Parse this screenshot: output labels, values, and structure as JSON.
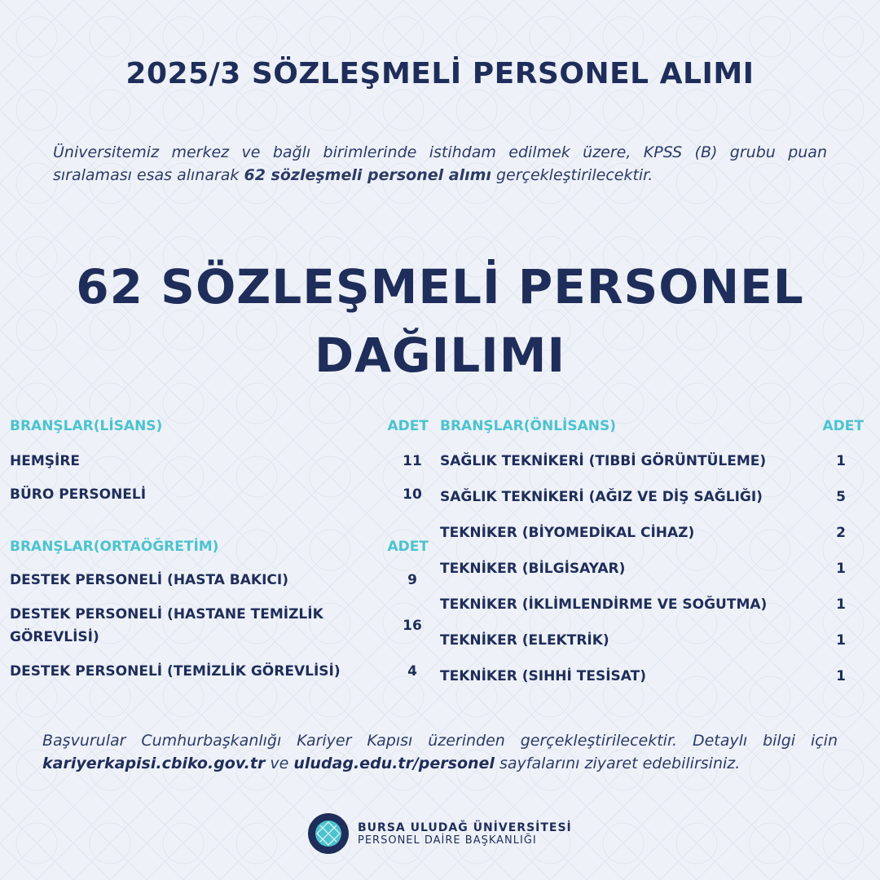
{
  "title": "2025/3 SÖZLEŞMELİ PERSONEL ALIMI",
  "intro": {
    "before": "Üniversitemiz merkez ve bağlı birimlerinde istihdam edilmek üzere, KPSS (B) grubu puan sıralaması esas alınarak ",
    "bold": "62 sözleşmeli personel alımı",
    "after": " gerçekleştirilecektir."
  },
  "big_title": {
    "line1": "62 SÖZLEŞMELİ PERSONEL",
    "line2": "DAĞILIMI"
  },
  "lisans": {
    "header": "BRANŞLAR(LİSANS)",
    "count_header": "ADET",
    "rows": [
      {
        "name": "HEMŞİRE",
        "count": "11"
      },
      {
        "name": "BÜRO PERSONELİ",
        "count": "10"
      }
    ]
  },
  "ortaogretim": {
    "header": "BRANŞLAR(ORTAÖĞRETİM)",
    "count_header": "ADET",
    "rows": [
      {
        "name": "DESTEK PERSONELİ (HASTA BAKICI)",
        "count": "9"
      },
      {
        "name": "DESTEK PERSONELİ (HASTANE TEMİZLİK GÖREVLİSİ)",
        "count": "16"
      },
      {
        "name": "DESTEK PERSONELİ (TEMİZLİK GÖREVLİSİ)",
        "count": "4"
      }
    ]
  },
  "onlisans": {
    "header": "BRANŞLAR(ÖNLİSANS)",
    "count_header": "ADET",
    "rows": [
      {
        "name": "SAĞLIK TEKNİKERİ (TIBBİ GÖRÜNTÜLEME)",
        "count": "1"
      },
      {
        "name": "SAĞLIK TEKNİKERİ (AĞIZ VE DİŞ SAĞLIĞI)",
        "count": "5"
      },
      {
        "name": "TEKNİKER (BİYOMEDİKAL CİHAZ)",
        "count": "2"
      },
      {
        "name": "TEKNİKER (BİLGİSAYAR)",
        "count": "1"
      },
      {
        "name": "TEKNİKER (İKLİMLENDİRME VE SOĞUTMA)",
        "count": "1"
      },
      {
        "name": "TEKNİKER (ELEKTRİK)",
        "count": "1"
      },
      {
        "name": "TEKNİKER (SIHHİ TESİSAT)",
        "count": "1"
      }
    ]
  },
  "footer": {
    "t1": "Başvurular Cumhurbaşkanlığı Kariyer Kapısı üzerinden gerçekleştirilecektir. Detaylı bilgi için ",
    "link1": "kariyerkapisi.cbiko.gov.tr",
    "t2": " ve ",
    "link2": "uludag.edu.tr/personel",
    "t3": " sayfalarını ziyaret edebilirsiniz."
  },
  "logo": {
    "seal_text": "BURSA ULUDAĞ ÜNİVERSİTESİ 1975",
    "name": "BURSA ULUDAĞ ÜNİVERSİTESİ",
    "dept": "PERSONEL DAİRE BAŞKANLIĞI"
  },
  "colors": {
    "navy": "#1f2d5a",
    "teal": "#4cc3cf",
    "background": "#eef2f8"
  }
}
